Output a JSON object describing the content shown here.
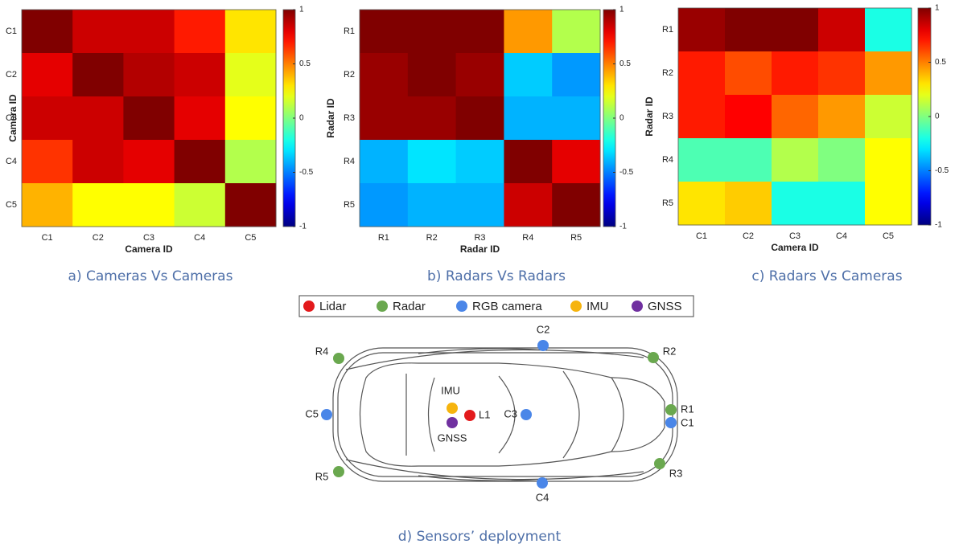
{
  "chart_data": [
    {
      "type": "heatmap",
      "caption": "a) Cameras Vs Cameras",
      "xlabel": "Camera ID",
      "ylabel": "Camera ID",
      "x_categories": [
        "C1",
        "C2",
        "C3",
        "C4",
        "C5"
      ],
      "y_categories": [
        "C1",
        "C2",
        "C3",
        "C4",
        "C5"
      ],
      "values": [
        [
          1,
          0.85,
          0.85,
          0.7,
          0.3
        ],
        [
          0.8,
          1,
          0.9,
          0.85,
          0.2
        ],
        [
          0.85,
          0.85,
          1,
          0.8,
          0.25
        ],
        [
          0.65,
          0.85,
          0.8,
          1,
          0.1
        ],
        [
          0.4,
          0.25,
          0.25,
          0.15,
          1
        ]
      ],
      "clim": [
        -1,
        1
      ],
      "cticks": [
        -1,
        -0.5,
        0,
        0.5,
        1
      ],
      "colormap": "jet"
    },
    {
      "type": "heatmap",
      "caption": "b) Radars Vs Radars",
      "xlabel": "Radar ID",
      "ylabel": "Radar ID",
      "x_categories": [
        "R1",
        "R2",
        "R3",
        "R4",
        "R5"
      ],
      "y_categories": [
        "R1",
        "R2",
        "R3",
        "R4",
        "R5"
      ],
      "values": [
        [
          1,
          1,
          1,
          0.45,
          0.1
        ],
        [
          0.95,
          1,
          0.95,
          -0.35,
          -0.45
        ],
        [
          0.95,
          0.95,
          1,
          -0.4,
          -0.4
        ],
        [
          -0.4,
          -0.3,
          -0.35,
          1,
          0.8
        ],
        [
          -0.45,
          -0.4,
          -0.4,
          0.85,
          1
        ]
      ],
      "clim": [
        -1,
        1
      ],
      "cticks": [
        -1,
        -0.5,
        0,
        0.5,
        1
      ],
      "colormap": "jet"
    },
    {
      "type": "heatmap",
      "caption": "c) Radars Vs Cameras",
      "xlabel": "Camera ID",
      "ylabel": "Radar ID",
      "x_categories": [
        "C1",
        "C2",
        "C3",
        "C4",
        "C5"
      ],
      "y_categories": [
        "R1",
        "R2",
        "R3",
        "R4",
        "R5"
      ],
      "values": [
        [
          0.95,
          1,
          1,
          0.85,
          -0.2
        ],
        [
          0.7,
          0.6,
          0.7,
          0.65,
          0.45
        ],
        [
          0.7,
          0.75,
          0.55,
          0.45,
          0.15
        ],
        [
          -0.1,
          -0.1,
          0.1,
          0.0,
          0.25
        ],
        [
          0.3,
          0.35,
          -0.2,
          -0.2,
          0.25
        ]
      ],
      "clim": [
        -1,
        1
      ],
      "cticks": [
        -1,
        -0.5,
        0,
        0.5,
        1
      ],
      "colormap": "jet"
    }
  ],
  "diagram": {
    "caption": "d) Sensors’ deployment",
    "legend": [
      {
        "label": "Lidar",
        "color": "#e31a1c"
      },
      {
        "label": "Radar",
        "color": "#6aa84f"
      },
      {
        "label": "RGB camera",
        "color": "#4a86e8"
      },
      {
        "label": "IMU",
        "color": "#f6b40e"
      },
      {
        "label": "GNSS",
        "color": "#7030a0"
      }
    ],
    "sensors": [
      {
        "label": "C2",
        "color": "#4a86e8"
      },
      {
        "label": "R4",
        "color": "#6aa84f"
      },
      {
        "label": "R2",
        "color": "#6aa84f"
      },
      {
        "label": "IMU",
        "color": "#f6b40e"
      },
      {
        "label": "L1",
        "color": "#e31a1c"
      },
      {
        "label": "C3",
        "color": "#4a86e8"
      },
      {
        "label": "C5",
        "color": "#4a86e8"
      },
      {
        "label": "R1",
        "color": "#6aa84f"
      },
      {
        "label": "C1",
        "color": "#4a86e8"
      },
      {
        "label": "GNSS",
        "color": "#7030a0"
      },
      {
        "label": "R5",
        "color": "#6aa84f"
      },
      {
        "label": "R3",
        "color": "#6aa84f"
      },
      {
        "label": "C4",
        "color": "#4a86e8"
      }
    ]
  }
}
